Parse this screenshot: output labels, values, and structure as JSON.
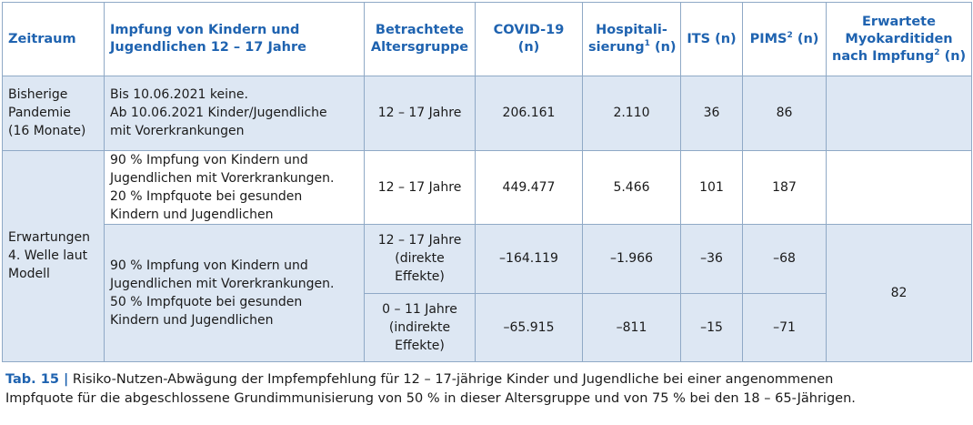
{
  "header": {
    "zeitraum": "Zeitraum",
    "impfung": [
      "Impfung von Kindern und",
      "Jugendlichen 12 – 17 Jahre"
    ],
    "alter": [
      "Betrachtete",
      "Altersgruppe"
    ],
    "covid": "COVID-19 (n)",
    "hosp_a": "Hospitali-",
    "hosp_b": "sierung",
    "hosp_sup": "1",
    "hosp_c": " (n)",
    "its": "ITS (n)",
    "pims": "PIMS",
    "pims_sup": "2",
    "pims_c": " (n)",
    "myo": [
      "Erwartete",
      "Myokarditiden"
    ],
    "myo_c": "nach Impfung",
    "myo_sup": "2",
    "myo_d": " (n)"
  },
  "rows": {
    "r1": {
      "zeitraum": [
        "Bisherige",
        "Pandemie",
        "(16 Monate)"
      ],
      "impfung": [
        "Bis 10.06.2021 keine.",
        "Ab 10.06.2021 Kinder/Jugendliche",
        "mit Vorerkrankungen"
      ],
      "alter": "12 – 17 Jahre",
      "covid": "206.161",
      "hosp": "2.110",
      "its": "36",
      "pims": "86",
      "myo": ""
    },
    "r2": {
      "impfung": [
        "90 % Impfung von Kindern und",
        "Jugendlichen mit Vorerkrankungen.",
        "20 % Impfquote bei gesunden",
        "Kindern und Jugendlichen"
      ],
      "alter": "12 – 17 Jahre",
      "covid": "449.477",
      "hosp": "5.466",
      "its": "101",
      "pims": "187",
      "myo": ""
    },
    "r34": {
      "zeitraum": [
        "Erwartungen",
        "4. Welle laut",
        "Modell"
      ],
      "impfung": [
        "90 % Impfung von Kindern und",
        "Jugendlichen mit Vorerkrankungen.",
        "50 % Impfquote bei gesunden",
        "Kindern und Jugendlichen"
      ],
      "myo": "82"
    },
    "r3": {
      "alter": [
        "12 – 17 Jahre",
        "(direkte",
        "Effekte)"
      ],
      "covid": "–164.119",
      "hosp": "–1.966",
      "its": "–36",
      "pims": "–68"
    },
    "r4": {
      "alter": [
        "0 – 11 Jahre",
        "(indirekte",
        "Effekte)"
      ],
      "covid": "–65.915",
      "hosp": "–811",
      "its": "–15",
      "pims": "–71"
    }
  },
  "caption": {
    "label": "Tab. 15 |",
    "line1": " Risiko-Nutzen-Abwägung der Impfempfehlung für 12 – 17-jährige Kinder und Jugendliche bei einer angenommenen",
    "line2": "Impfquote für die abgeschlossene Grundimmunisierung von 50 % in dieser Altersgruppe und von 75 % bei den 18 – 65-Jährigen."
  },
  "colors": {
    "accent": "#1f63b0",
    "row_fill": "#dde7f3",
    "border": "#8fa9c6"
  }
}
